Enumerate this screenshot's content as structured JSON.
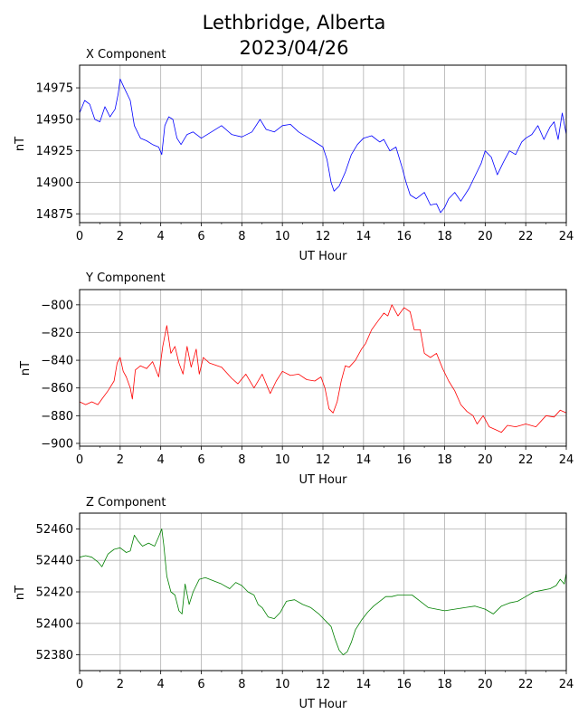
{
  "header": {
    "title_line1": "Lethbridge, Alberta",
    "title_line2": "2023/04/26"
  },
  "chart_data": [
    {
      "type": "line",
      "title": "X Component",
      "xlabel": "UT Hour",
      "ylabel": "nT",
      "xlim": [
        0,
        24
      ],
      "ylim": [
        14868,
        14993
      ],
      "xticks": [
        0,
        2,
        4,
        6,
        8,
        10,
        12,
        14,
        16,
        18,
        20,
        22,
        24
      ],
      "yticks": [
        14875,
        14900,
        14925,
        14950,
        14975
      ],
      "grid": true,
      "colors": {
        "line": "#0000ff"
      },
      "series": [
        {
          "x": [
            0,
            0.25,
            0.5,
            0.75,
            1.0,
            1.25,
            1.5,
            1.75,
            1.9,
            2.0,
            2.2,
            2.5,
            2.7,
            3.0,
            3.3,
            3.6,
            3.9,
            4.05,
            4.2,
            4.4,
            4.6,
            4.8,
            5.0,
            5.3,
            5.6,
            6.0,
            6.5,
            7.0,
            7.5,
            8.0,
            8.5,
            8.9,
            9.2,
            9.6,
            10.0,
            10.4,
            10.8,
            11.2,
            11.6,
            12.0,
            12.2,
            12.4,
            12.55,
            12.8,
            13.1,
            13.4,
            13.7,
            14.0,
            14.4,
            14.8,
            15.0,
            15.3,
            15.6,
            15.9,
            16.1,
            16.3,
            16.6,
            17.0,
            17.3,
            17.6,
            17.8,
            18.0,
            18.2,
            18.5,
            18.8,
            19.2,
            19.5,
            19.8,
            20.0,
            20.3,
            20.6,
            20.9,
            21.2,
            21.5,
            21.8,
            22.0,
            22.3,
            22.6,
            22.9,
            23.2,
            23.4,
            23.6,
            23.8,
            24.0
          ],
          "y": [
            14955,
            14965,
            14962,
            14950,
            14948,
            14960,
            14952,
            14958,
            14970,
            14982,
            14975,
            14965,
            14945,
            14935,
            14933,
            14930,
            14928,
            14922,
            14945,
            14952,
            14950,
            14935,
            14930,
            14938,
            14940,
            14935,
            14940,
            14945,
            14938,
            14936,
            14940,
            14950,
            14942,
            14940,
            14945,
            14946,
            14940,
            14936,
            14932,
            14928,
            14918,
            14900,
            14893,
            14897,
            14908,
            14922,
            14930,
            14935,
            14937,
            14932,
            14934,
            14925,
            14928,
            14912,
            14900,
            14890,
            14887,
            14892,
            14882,
            14883,
            14876,
            14880,
            14887,
            14892,
            14885,
            14895,
            14905,
            14915,
            14925,
            14920,
            14906,
            14916,
            14925,
            14922,
            14932,
            14935,
            14938,
            14945,
            14934,
            14944,
            14948,
            14934,
            14955,
            14938
          ]
        }
      ]
    },
    {
      "type": "line",
      "title": "Y Component",
      "xlabel": "UT Hour",
      "ylabel": "nT",
      "xlim": [
        0,
        24
      ],
      "ylim": [
        -902,
        -789
      ],
      "xticks": [
        0,
        2,
        4,
        6,
        8,
        10,
        12,
        14,
        16,
        18,
        20,
        22,
        24
      ],
      "yticks": [
        -800,
        -820,
        -840,
        -860,
        -880,
        -900
      ],
      "grid": true,
      "colors": {
        "line": "#ff0000"
      },
      "series": [
        {
          "x": [
            0,
            0.3,
            0.6,
            0.9,
            1.1,
            1.4,
            1.7,
            1.85,
            2.0,
            2.15,
            2.3,
            2.5,
            2.6,
            2.75,
            3.0,
            3.3,
            3.6,
            3.9,
            4.1,
            4.3,
            4.5,
            4.7,
            4.9,
            5.1,
            5.3,
            5.5,
            5.75,
            5.9,
            6.1,
            6.4,
            7.0,
            7.5,
            7.8,
            8.2,
            8.6,
            9.0,
            9.4,
            9.7,
            10.0,
            10.4,
            10.8,
            11.2,
            11.6,
            11.9,
            12.1,
            12.3,
            12.5,
            12.7,
            12.9,
            13.1,
            13.3,
            13.6,
            13.9,
            14.1,
            14.4,
            14.7,
            15.0,
            15.2,
            15.4,
            15.7,
            16.0,
            16.3,
            16.5,
            16.8,
            17.0,
            17.3,
            17.6,
            17.9,
            18.2,
            18.5,
            18.8,
            19.1,
            19.4,
            19.6,
            19.9,
            20.2,
            20.5,
            20.8,
            21.1,
            21.5,
            22.0,
            22.5,
            23.0,
            23.4,
            23.7,
            24.0
          ],
          "y": [
            -870,
            -872,
            -870,
            -872,
            -868,
            -862,
            -855,
            -842,
            -838,
            -848,
            -852,
            -860,
            -868,
            -847,
            -844,
            -846,
            -841,
            -852,
            -830,
            -815,
            -835,
            -830,
            -842,
            -850,
            -830,
            -845,
            -832,
            -850,
            -838,
            -842,
            -845,
            -853,
            -857,
            -850,
            -860,
            -850,
            -864,
            -855,
            -848,
            -851,
            -850,
            -854,
            -855,
            -852,
            -860,
            -875,
            -878,
            -870,
            -855,
            -844,
            -845,
            -840,
            -832,
            -828,
            -818,
            -812,
            -806,
            -808,
            -800,
            -808,
            -802,
            -805,
            -818,
            -818,
            -835,
            -838,
            -835,
            -846,
            -855,
            -862,
            -872,
            -877,
            -880,
            -886,
            -880,
            -888,
            -890,
            -892,
            -887,
            -888,
            -886,
            -888,
            -880,
            -881,
            -876,
            -878
          ]
        }
      ]
    },
    {
      "type": "line",
      "title": "Z Component",
      "xlabel": "UT Hour",
      "ylabel": "nT",
      "xlim": [
        0,
        24
      ],
      "ylim": [
        52370,
        52470
      ],
      "xticks": [
        0,
        2,
        4,
        6,
        8,
        10,
        12,
        14,
        16,
        18,
        20,
        22,
        24
      ],
      "yticks": [
        52380,
        52400,
        52420,
        52440,
        52460
      ],
      "grid": true,
      "colors": {
        "line": "#008000"
      },
      "series": [
        {
          "x": [
            0,
            0.3,
            0.6,
            0.9,
            1.1,
            1.4,
            1.7,
            2.0,
            2.3,
            2.5,
            2.7,
            2.9,
            3.1,
            3.4,
            3.7,
            3.9,
            4.05,
            4.15,
            4.3,
            4.5,
            4.7,
            4.9,
            5.05,
            5.2,
            5.4,
            5.6,
            5.9,
            6.2,
            6.6,
            7.0,
            7.4,
            7.7,
            8.0,
            8.3,
            8.6,
            8.8,
            9.0,
            9.3,
            9.6,
            9.9,
            10.2,
            10.6,
            11.0,
            11.4,
            11.8,
            12.1,
            12.4,
            12.6,
            12.8,
            13.0,
            13.2,
            13.4,
            13.6,
            13.9,
            14.2,
            14.5,
            14.8,
            15.1,
            15.4,
            15.7,
            16.0,
            16.4,
            16.8,
            17.2,
            17.6,
            18.0,
            18.5,
            19.0,
            19.5,
            20.0,
            20.4,
            20.8,
            21.2,
            21.6,
            22.0,
            22.4,
            22.8,
            23.2,
            23.5,
            23.7,
            23.9,
            24.0
          ],
          "y": [
            52442,
            52443,
            52442,
            52439,
            52436,
            52444,
            52447,
            52448,
            52445,
            52446,
            52456,
            52452,
            52449,
            52451,
            52449,
            52455,
            52460,
            52450,
            52430,
            52420,
            52418,
            52408,
            52406,
            52425,
            52412,
            52420,
            52428,
            52429,
            52427,
            52425,
            52422,
            52426,
            52424,
            52420,
            52418,
            52412,
            52410,
            52404,
            52403,
            52407,
            52414,
            52415,
            52412,
            52410,
            52406,
            52402,
            52398,
            52390,
            52383,
            52380,
            52382,
            52388,
            52396,
            52402,
            52407,
            52411,
            52414,
            52417,
            52417,
            52418,
            52418,
            52418,
            52414,
            52410,
            52409,
            52408,
            52409,
            52410,
            52411,
            52409,
            52406,
            52411,
            52413,
            52414,
            52417,
            52420,
            52421,
            52422,
            52424,
            52428,
            52425,
            52432
          ]
        }
      ]
    }
  ]
}
